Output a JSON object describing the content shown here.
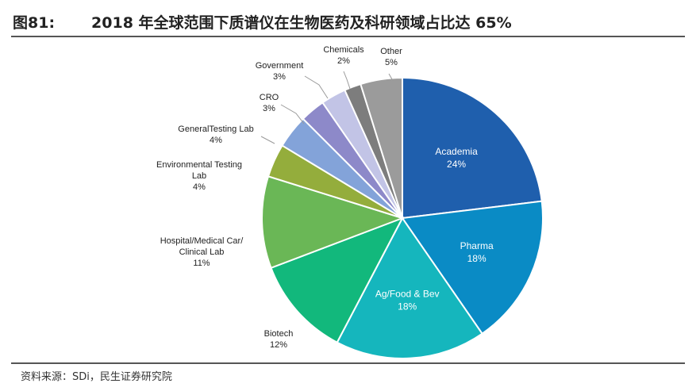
{
  "header": {
    "figure_number": "图81:",
    "title": "2018 年全球范围下质谱仪在生物医药及科研领域占比达 65%"
  },
  "source": "资料来源：SDi，民生证券研究院",
  "chart_data": {
    "type": "pie",
    "start_angle_deg": 0,
    "direction": "clockwise",
    "slices": [
      {
        "label": "Academia",
        "value_label": "24%",
        "value": 24,
        "color": "#1f5fad",
        "label_position": "inside"
      },
      {
        "label": "Pharma",
        "value_label": "18%",
        "value": 18,
        "color": "#0a8bc5",
        "label_position": "inside"
      },
      {
        "label": "Ag/Food & Bev",
        "value_label": "18%",
        "value": 18,
        "color": "#15b6bd",
        "label_position": "inside"
      },
      {
        "label": "Biotech",
        "value_label": "12%",
        "value": 12,
        "color": "#12b87c",
        "label_position": "outside"
      },
      {
        "label": "Hospital/Medical Car/ Clinical Lab",
        "value_label": "11%",
        "value": 11,
        "color": "#6ab756",
        "label_position": "outside"
      },
      {
        "label": "Environmental Testing Lab",
        "value_label": "4%",
        "value": 4,
        "color": "#94ad3c",
        "label_position": "outside"
      },
      {
        "label": "GeneralTesting Lab",
        "value_label": "4%",
        "value": 4,
        "color": "#83a3d9",
        "label_position": "outside"
      },
      {
        "label": "CRO",
        "value_label": "3%",
        "value": 3,
        "color": "#8d89c9",
        "label_position": "outside"
      },
      {
        "label": "Government",
        "value_label": "3%",
        "value": 3,
        "color": "#c2c4e6",
        "label_position": "outside"
      },
      {
        "label": "Chemicals",
        "value_label": "2%",
        "value": 2,
        "color": "#7d7d7d",
        "label_position": "outside"
      },
      {
        "label": "Other",
        "value_label": "5%",
        "value": 5,
        "color": "#9b9b9b",
        "label_position": "outside"
      }
    ]
  }
}
